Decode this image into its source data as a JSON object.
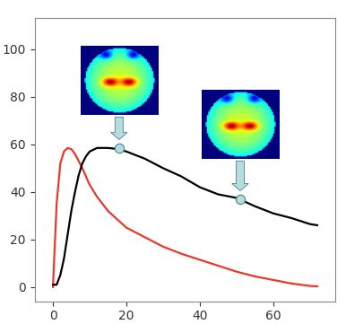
{
  "chart_data": {
    "type": "line",
    "xlim": [
      -5,
      77
    ],
    "ylim": [
      -6,
      113
    ],
    "xticks": [
      0,
      20,
      40,
      60
    ],
    "yticks": [
      0,
      20,
      40,
      60,
      80,
      100
    ],
    "grid": false,
    "series": [
      {
        "color": "#e8392b",
        "line_style": "solid",
        "x": [
          0,
          1,
          2,
          3,
          4,
          5,
          6,
          8,
          10,
          12,
          15,
          20,
          25,
          30,
          35,
          40,
          45,
          50,
          55,
          60,
          65,
          70,
          72
        ],
        "values": [
          0,
          35,
          52,
          57,
          58.5,
          58,
          56,
          50,
          43,
          38,
          32,
          25,
          21,
          17,
          14,
          11.5,
          9,
          6.5,
          4.5,
          3,
          1.5,
          0.5,
          0.3
        ]
      },
      {
        "color": "#000000",
        "line_style": "solid",
        "x": [
          0,
          1,
          2,
          3,
          4,
          5,
          6,
          7,
          8,
          9,
          10,
          12,
          15,
          18,
          20,
          25,
          30,
          35,
          40,
          45,
          50,
          55,
          60,
          65,
          70,
          72
        ],
        "values": [
          1,
          1,
          5,
          12,
          22,
          32,
          40,
          47,
          52,
          55,
          57,
          58.5,
          58.5,
          58,
          57,
          54,
          50,
          46.5,
          42,
          39,
          37.5,
          34,
          31,
          29,
          26.5,
          26
        ]
      },
      {
        "type": "scatter",
        "color": "#b5dde0",
        "marker": "o",
        "x": [
          18,
          51
        ],
        "values": [
          58.5,
          37
        ]
      }
    ]
  }
}
